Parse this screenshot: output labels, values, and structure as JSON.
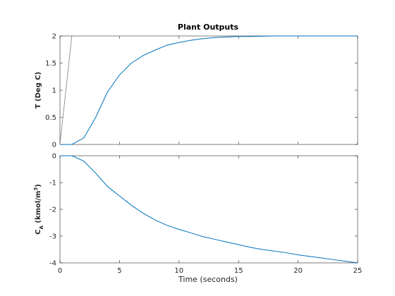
{
  "chart_data": {
    "title": "Plant Outputs",
    "xlabel": "Time (seconds)",
    "xlim": [
      0,
      25
    ],
    "xticks": [
      0,
      5,
      10,
      15,
      20,
      25
    ],
    "xtick_labels": [
      "0",
      "5",
      "10",
      "15",
      "20",
      "25"
    ],
    "colors": {
      "series": "#0072bd",
      "reference": "#808080",
      "axes": "#262626"
    },
    "subplots": [
      {
        "type": "line",
        "ylabel": "T (Deg C)",
        "ylim": [
          0,
          2
        ],
        "yticks": [
          0,
          0.5,
          1,
          1.5,
          2
        ],
        "ytick_labels": [
          "0",
          "0.5",
          "1",
          "1.5",
          "2"
        ],
        "series": [
          {
            "role": "output",
            "color": "#0072bd",
            "x": [
              0,
              1,
              2,
              3,
              4,
              5,
              6,
              7,
              8,
              9,
              10,
              11,
              12,
              13,
              14,
              15,
              16,
              17,
              18,
              19,
              20,
              21,
              22,
              23,
              24,
              25
            ],
            "y": [
              0,
              0,
              0.12,
              0.5,
              0.97,
              1.28,
              1.5,
              1.64,
              1.74,
              1.83,
              1.88,
              1.92,
              1.95,
              1.97,
              1.98,
              1.99,
              1.99,
              1.995,
              2.0,
              2.0,
              2.0,
              2.0,
              2.0,
              2.0,
              2.0,
              2.0
            ]
          },
          {
            "role": "reference",
            "color": "#808080",
            "x": [
              0,
              1,
              25
            ],
            "y": [
              0,
              2,
              2
            ]
          }
        ]
      },
      {
        "type": "line",
        "ylabel": "C_A (kmol/m^3)",
        "ylim": [
          -4,
          0
        ],
        "yticks": [
          -4,
          -3,
          -2,
          -1,
          0
        ],
        "ytick_labels": [
          "-4",
          "-3",
          "-2",
          "-1",
          "0"
        ],
        "series": [
          {
            "role": "output",
            "color": "#0072bd",
            "x": [
              0,
              1,
              2,
              3,
              4,
              5,
              6,
              7,
              8,
              9,
              10,
              11,
              12,
              13,
              14,
              15,
              16,
              17,
              18,
              19,
              20,
              21,
              22,
              23,
              24,
              25
            ],
            "y": [
              0,
              0,
              -0.2,
              -0.65,
              -1.15,
              -1.5,
              -1.85,
              -2.15,
              -2.4,
              -2.6,
              -2.75,
              -2.88,
              -3.02,
              -3.12,
              -3.22,
              -3.32,
              -3.42,
              -3.5,
              -3.56,
              -3.62,
              -3.7,
              -3.76,
              -3.82,
              -3.88,
              -3.94,
              -4.0
            ]
          }
        ]
      }
    ]
  }
}
